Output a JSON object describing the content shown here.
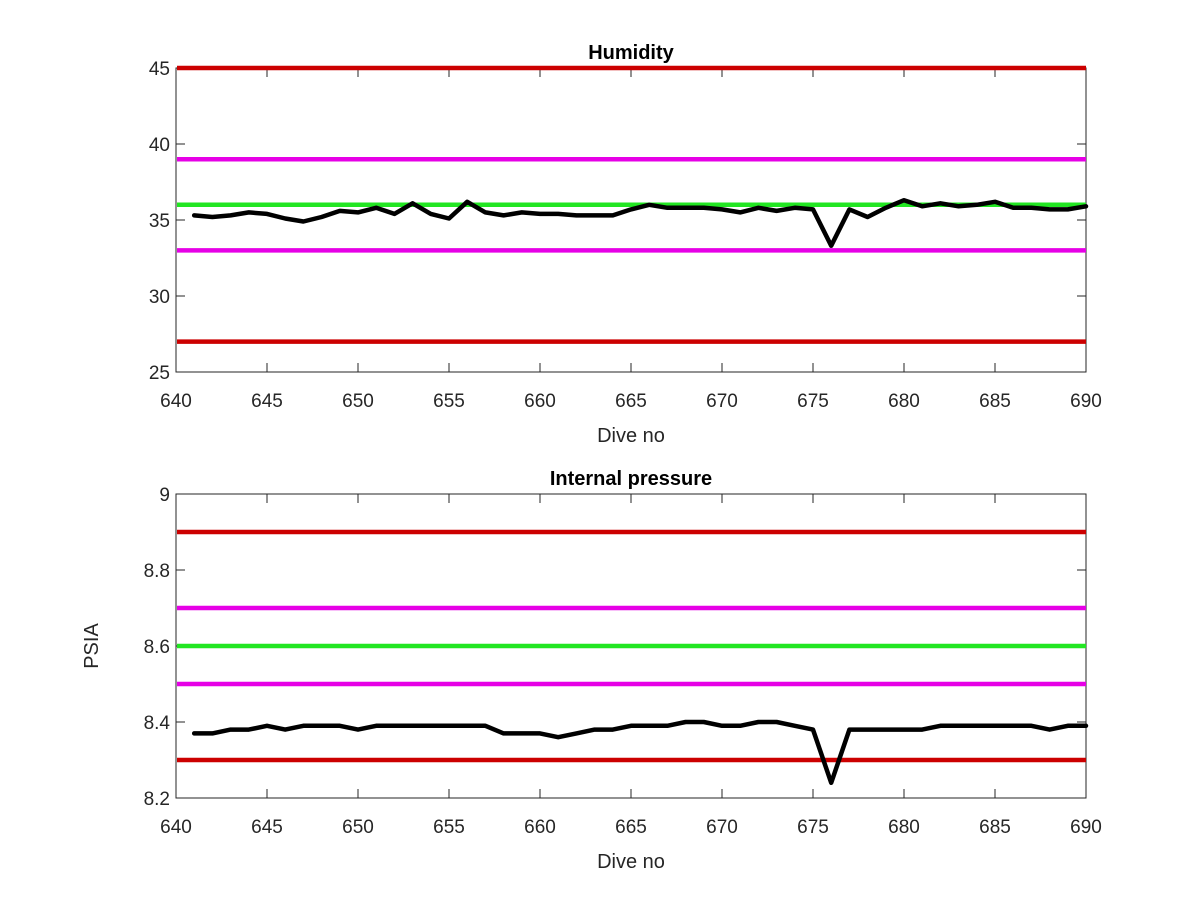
{
  "chart_data": [
    {
      "type": "line",
      "title": "Humidity",
      "xlabel": "Dive no",
      "ylabel": "",
      "xlim": [
        640,
        690
      ],
      "ylim": [
        25,
        45
      ],
      "xticks": [
        640,
        645,
        650,
        655,
        660,
        665,
        670,
        675,
        680,
        685,
        690
      ],
      "yticks": [
        25,
        30,
        35,
        40,
        45
      ],
      "grid": false,
      "limit_lines": [
        {
          "y": 45,
          "color": "#cc0000"
        },
        {
          "y": 39,
          "color": "#e600e6"
        },
        {
          "y": 36,
          "color": "#22e622"
        },
        {
          "y": 33,
          "color": "#e600e6"
        },
        {
          "y": 27,
          "color": "#cc0000"
        }
      ],
      "series": [
        {
          "color": "#000000",
          "x": [
            641,
            642,
            643,
            644,
            645,
            646,
            647,
            648,
            649,
            650,
            651,
            652,
            653,
            654,
            655,
            656,
            657,
            658,
            659,
            660,
            661,
            662,
            663,
            664,
            665,
            666,
            667,
            668,
            669,
            670,
            671,
            672,
            673,
            674,
            675,
            676,
            677,
            678,
            679,
            680,
            681,
            682,
            683,
            684,
            685,
            686,
            687,
            688,
            689,
            690
          ],
          "y": [
            35.3,
            35.2,
            35.3,
            35.5,
            35.4,
            35.1,
            34.9,
            35.2,
            35.6,
            35.5,
            35.8,
            35.4,
            36.1,
            35.4,
            35.1,
            36.2,
            35.5,
            35.3,
            35.5,
            35.4,
            35.4,
            35.3,
            35.3,
            35.3,
            35.7,
            36.0,
            35.8,
            35.8,
            35.8,
            35.7,
            35.5,
            35.8,
            35.6,
            35.8,
            35.7,
            33.3,
            35.7,
            35.2,
            35.8,
            36.3,
            35.9,
            36.1,
            35.9,
            36.0,
            36.2,
            35.8,
            35.8,
            35.7,
            35.7,
            35.9
          ]
        }
      ]
    },
    {
      "type": "line",
      "title": "Internal pressure",
      "xlabel": "Dive no",
      "ylabel": "PSIA",
      "xlim": [
        640,
        690
      ],
      "ylim": [
        8.2,
        9.0
      ],
      "xticks": [
        640,
        645,
        650,
        655,
        660,
        665,
        670,
        675,
        680,
        685,
        690
      ],
      "yticks": [
        8.2,
        8.4,
        8.6,
        8.8,
        9
      ],
      "grid": false,
      "limit_lines": [
        {
          "y": 8.9,
          "color": "#cc0000"
        },
        {
          "y": 8.7,
          "color": "#e600e6"
        },
        {
          "y": 8.6,
          "color": "#22e622"
        },
        {
          "y": 8.5,
          "color": "#e600e6"
        },
        {
          "y": 8.3,
          "color": "#cc0000"
        }
      ],
      "series": [
        {
          "color": "#000000",
          "x": [
            641,
            642,
            643,
            644,
            645,
            646,
            647,
            648,
            649,
            650,
            651,
            652,
            653,
            654,
            655,
            656,
            657,
            658,
            659,
            660,
            661,
            662,
            663,
            664,
            665,
            666,
            667,
            668,
            669,
            670,
            671,
            672,
            673,
            674,
            675,
            676,
            677,
            678,
            679,
            680,
            681,
            682,
            683,
            684,
            685,
            686,
            687,
            688,
            689,
            690
          ],
          "y": [
            8.37,
            8.37,
            8.38,
            8.38,
            8.39,
            8.38,
            8.39,
            8.39,
            8.39,
            8.38,
            8.39,
            8.39,
            8.39,
            8.39,
            8.39,
            8.39,
            8.39,
            8.37,
            8.37,
            8.37,
            8.36,
            8.37,
            8.38,
            8.38,
            8.39,
            8.39,
            8.39,
            8.4,
            8.4,
            8.39,
            8.39,
            8.4,
            8.4,
            8.39,
            8.38,
            8.24,
            8.38,
            8.38,
            8.38,
            8.38,
            8.38,
            8.39,
            8.39,
            8.39,
            8.39,
            8.39,
            8.39,
            8.38,
            8.39,
            8.39
          ]
        }
      ]
    }
  ]
}
